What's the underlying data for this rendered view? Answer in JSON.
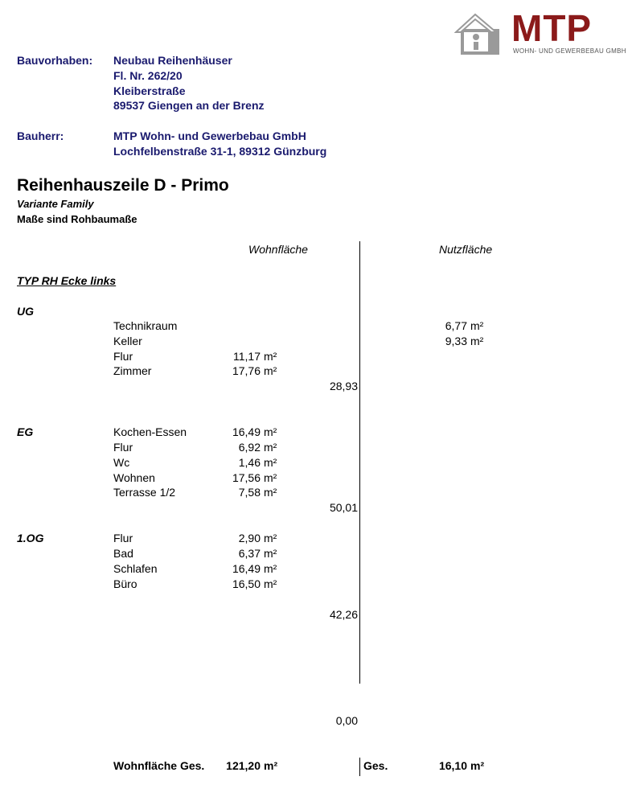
{
  "logo": {
    "name": "MTP",
    "subtitle": "WOHN- UND GEWERBEBAU GMBH",
    "brand_color": "#8b1a1a"
  },
  "project": {
    "label": "Bauvorhaben:",
    "lines": [
      "Neubau Reihenhäuser",
      "Fl. Nr. 262/20",
      "Kleiberstraße",
      "89537 Giengen an der Brenz"
    ]
  },
  "client": {
    "label": "Bauherr:",
    "lines": [
      "MTP Wohn- und Gewerbebau GmbH",
      "Lochfelbenstraße 31-1, 89312 Günzburg"
    ]
  },
  "title": "Reihenhauszeile D - Primo",
  "variant": "Variante Family",
  "note": "Maße sind Rohbaumaße",
  "col_wohn": "Wohnfläche",
  "col_nutz": "Nutzfläche",
  "type": "TYP RH Ecke links",
  "unit": "m²",
  "ug": {
    "label": "UG",
    "nutz": [
      {
        "name": "Technikraum",
        "value": "6,77"
      },
      {
        "name": "Keller",
        "value": "9,33"
      }
    ],
    "rooms": [
      {
        "name": "Flur",
        "value": "11,17"
      },
      {
        "name": "Zimmer",
        "value": "17,76"
      }
    ],
    "subtotal": "28,93"
  },
  "eg": {
    "label": "EG",
    "rooms": [
      {
        "name": "Kochen-Essen",
        "value": "16,49"
      },
      {
        "name": "Flur",
        "value": "6,92"
      },
      {
        "name": "Wc",
        "value": "1,46"
      },
      {
        "name": "Wohnen",
        "value": "17,56"
      },
      {
        "name": "Terrasse 1/2",
        "value": "7,58"
      }
    ],
    "subtotal": "50,01"
  },
  "og": {
    "label": "1.OG",
    "rooms": [
      {
        "name": "Flur",
        "value": "2,90"
      },
      {
        "name": "Bad",
        "value": "6,37"
      },
      {
        "name": "Schlafen",
        "value": "16,49"
      },
      {
        "name": "Büro",
        "value": "16,50"
      }
    ],
    "subtotal": "42,26"
  },
  "extra_subtotal": "0,00",
  "totals": {
    "wohn_label": "Wohnfläche Ges.",
    "wohn_value": "121,20",
    "nutz_label": "Ges.",
    "nutz_value": "16,10"
  }
}
